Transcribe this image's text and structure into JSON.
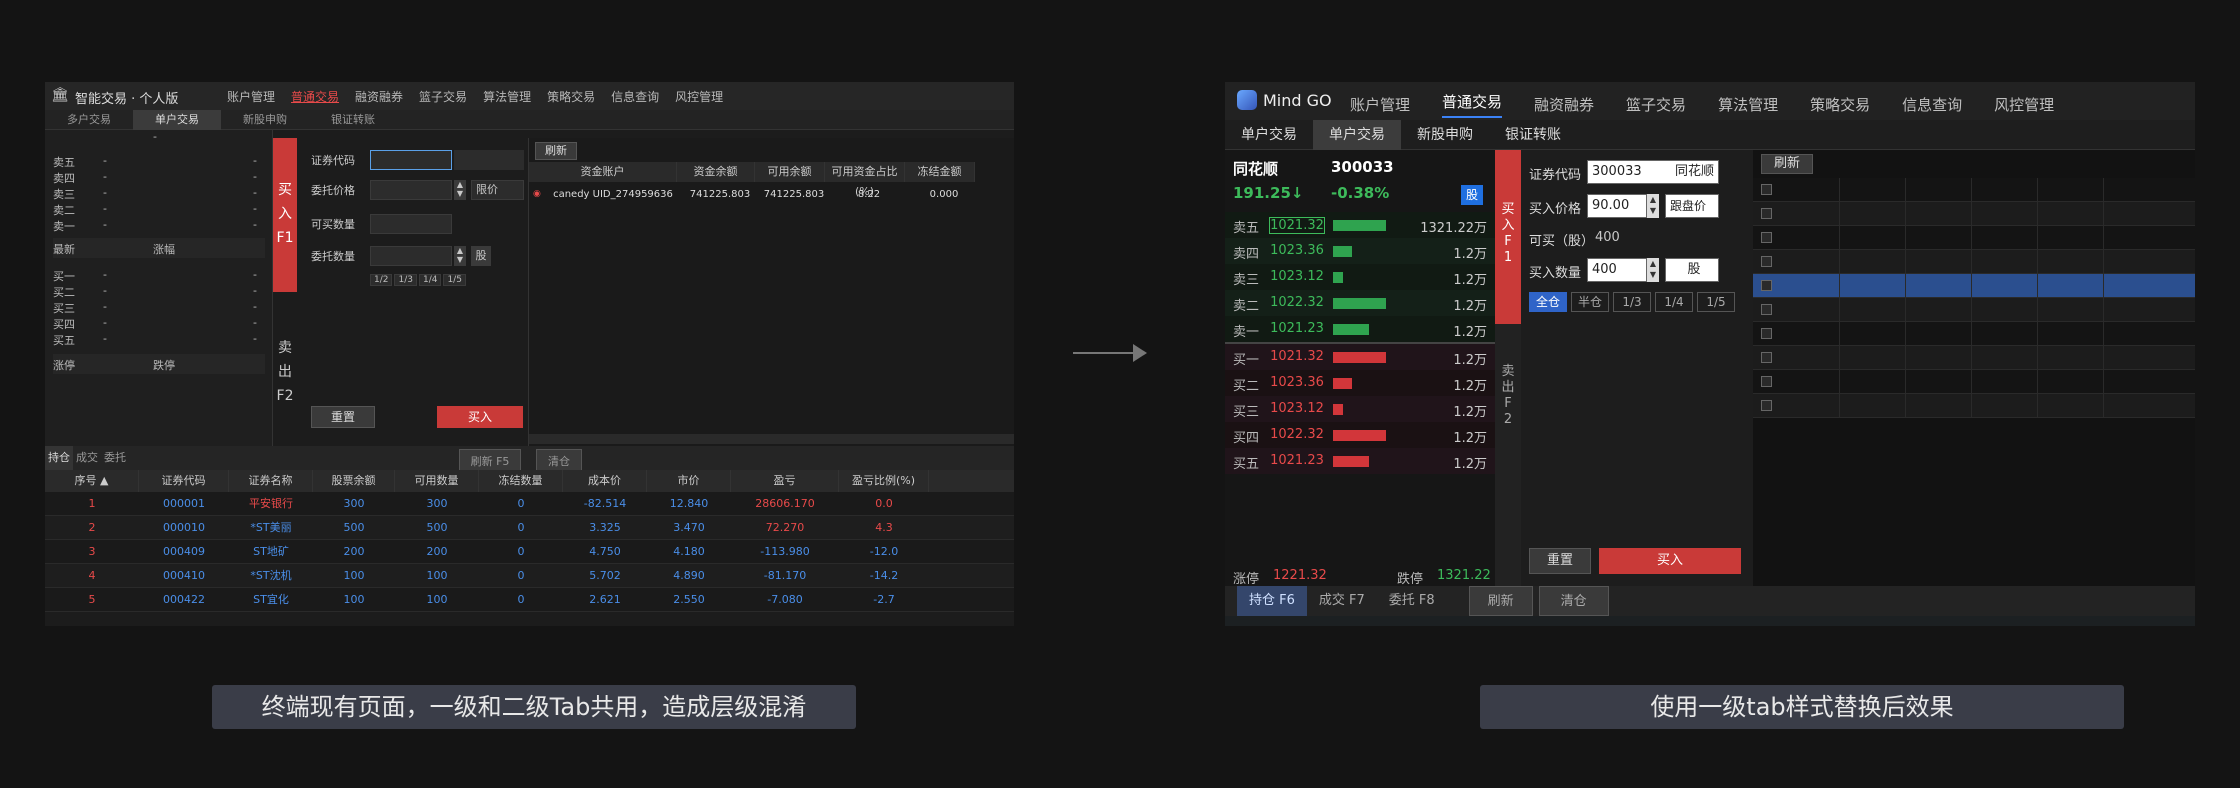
{
  "left": {
    "app_title": "智能交易 · 个人版",
    "menu": [
      "账户管理",
      "普通交易",
      "融资融券",
      "篮子交易",
      "算法管理",
      "策略交易",
      "信息查询",
      "风控管理"
    ],
    "menu_active": "普通交易",
    "subtabs": [
      "多户交易",
      "单户交易",
      "新股申购",
      "银证转账"
    ],
    "subtab_active": "单户交易",
    "orderbook": {
      "top_dash": "-",
      "asks": [
        "卖五",
        "卖四",
        "卖三",
        "卖二",
        "卖一"
      ],
      "latest": "最新",
      "change": "涨幅",
      "bids": [
        "买一",
        "买二",
        "买三",
        "买四",
        "买五"
      ],
      "limit_up": "涨停",
      "limit_down": "跌停",
      "dash": "-"
    },
    "buy_side": "买\n入\nF1",
    "sell_side": "卖\n出\nF2",
    "form": {
      "code_label": "证券代码",
      "price_label": "委托价格",
      "price_type": "限价",
      "avail_label": "可买数量",
      "qty_label": "委托数量",
      "qty_unit": "股",
      "fractions": [
        "1/2",
        "1/3",
        "1/4",
        "1/5"
      ],
      "reset": "重置",
      "buy": "买入"
    },
    "grid": {
      "refresh": "刷新",
      "headers": [
        "资金账户",
        "资金余额",
        "可用余额",
        "可用资金占比(%)",
        "冻结金额"
      ],
      "row": [
        "canedy UID_274959636",
        "741225.803",
        "741225.803",
        "8.22",
        "0.000"
      ]
    },
    "bottom_tabs": [
      "持仓 F6",
      "成交 F7",
      "委托 F8"
    ],
    "refresh_f5": "刷新 F5",
    "clear": "清仓",
    "table_headers": [
      "序号",
      "证券代码",
      "证券名称",
      "股票余额",
      "可用数量",
      "冻结数量",
      "成本价",
      "市价",
      "盈亏",
      "盈亏比例(%)"
    ],
    "table_rows": [
      [
        "1",
        "000001",
        "平安银行",
        "300",
        "300",
        "0",
        "-82.514",
        "12.840",
        "28606.170",
        "0.0"
      ],
      [
        "2",
        "000010",
        "*ST美丽",
        "500",
        "500",
        "0",
        "3.325",
        "3.470",
        "72.270",
        "4.3"
      ],
      [
        "3",
        "000409",
        "ST地矿",
        "200",
        "200",
        "0",
        "4.750",
        "4.180",
        "-113.980",
        "-12.0"
      ],
      [
        "4",
        "000410",
        "*ST沈机",
        "100",
        "100",
        "0",
        "5.702",
        "4.890",
        "-81.170",
        "-14.2"
      ],
      [
        "5",
        "000422",
        "ST宜化",
        "100",
        "100",
        "0",
        "2.621",
        "2.550",
        "-7.080",
        "-2.7"
      ]
    ]
  },
  "right": {
    "logo": "Mind GO",
    "menu": [
      "账户管理",
      "普通交易",
      "融资融券",
      "篮子交易",
      "算法管理",
      "策略交易",
      "信息查询",
      "风控管理"
    ],
    "menu_active": "普通交易",
    "subtabs": [
      "单户交易",
      "单户交易",
      "新股申购",
      "银证转账"
    ],
    "subtab_active_index": 1,
    "stock_name": "同花顺",
    "stock_code": "300033",
    "price": "191.25",
    "price_arrow": "↓",
    "pct": "-0.38%",
    "badge": "股",
    "orderbook": [
      {
        "name": "卖五",
        "price": "1021.32",
        "vol": "1321.22万",
        "bar": 0.55,
        "side": "ask"
      },
      {
        "name": "卖四",
        "price": "1023.36",
        "vol": "1.2万",
        "bar": 0.2,
        "side": "ask"
      },
      {
        "name": "卖三",
        "price": "1023.12",
        "vol": "1.2万",
        "bar": 0.1,
        "side": "ask"
      },
      {
        "name": "卖二",
        "price": "1022.32",
        "vol": "1.2万",
        "bar": 0.55,
        "side": "ask"
      },
      {
        "name": "卖一",
        "price": "1021.23",
        "vol": "1.2万",
        "bar": 0.38,
        "side": "ask"
      },
      {
        "name": "买一",
        "price": "1021.32",
        "vol": "1.2万",
        "bar": 0.55,
        "side": "bid"
      },
      {
        "name": "买二",
        "price": "1023.36",
        "vol": "1.2万",
        "bar": 0.2,
        "side": "bid"
      },
      {
        "name": "买三",
        "price": "1023.12",
        "vol": "1.2万",
        "bar": 0.1,
        "side": "bid"
      },
      {
        "name": "买四",
        "price": "1022.32",
        "vol": "1.2万",
        "bar": 0.55,
        "side": "bid"
      },
      {
        "name": "买五",
        "price": "1021.23",
        "vol": "1.2万",
        "bar": 0.38,
        "side": "bid"
      }
    ],
    "limit_up_label": "涨停",
    "limit_up": "1221.32",
    "limit_down_label": "跌停",
    "limit_down": "1321.22",
    "buy_side": "买\n入\nF\n1",
    "sell_side": "卖\n出\nF\n2",
    "form": {
      "code_label": "证券代码",
      "code_value": "300033",
      "code_name": "同花顺",
      "price_label": "买入价格",
      "price_value": "90.00",
      "price_type": "跟盘价",
      "avail_label": "可买（股）",
      "avail_value": "400",
      "qty_label": "买入数量",
      "qty_value": "400",
      "qty_unit": "股",
      "positions": [
        "全仓",
        "半仓",
        "1/3",
        "1/4",
        "1/5"
      ],
      "reset": "重置",
      "buy": "买入"
    },
    "grid_refresh": "刷新",
    "bottom_tabs": [
      "持仓 F6",
      "成交 F7",
      "委托 F8"
    ],
    "refresh_f5": "刷新 F5",
    "clear": "清仓"
  },
  "captions": {
    "left": "终端现有页面，一级和二级Tab共用，造成层级混淆",
    "right": "使用一级tab样式替换后效果"
  },
  "colors": {
    "accent_red": "#c93a38",
    "accent_blue": "#3b82f6",
    "rise": "#e84a4a",
    "fall": "#3dbb5b"
  }
}
